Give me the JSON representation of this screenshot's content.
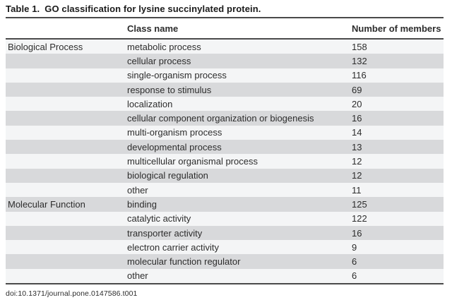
{
  "title": {
    "label": "Table 1.",
    "text": "GO classification for lysine succinylated protein."
  },
  "table": {
    "columns": {
      "category": "",
      "class_name": "Class name",
      "members": "Number of members"
    },
    "sections": [
      {
        "category": "Biological Process",
        "rows": [
          {
            "class_name": "metabolic process",
            "members": "158"
          },
          {
            "class_name": "cellular process",
            "members": "132"
          },
          {
            "class_name": "single-organism process",
            "members": "116"
          },
          {
            "class_name": "response to stimulus",
            "members": "69"
          },
          {
            "class_name": "localization",
            "members": "20"
          },
          {
            "class_name": "cellular component organization or biogenesis",
            "members": "16"
          },
          {
            "class_name": "multi-organism process",
            "members": "14"
          },
          {
            "class_name": "developmental process",
            "members": "13"
          },
          {
            "class_name": "multicellular organismal process",
            "members": "12"
          },
          {
            "class_name": "biological regulation",
            "members": "12"
          },
          {
            "class_name": "other",
            "members": "11"
          }
        ]
      },
      {
        "category": "Molecular Function",
        "rows": [
          {
            "class_name": "binding",
            "members": "125"
          },
          {
            "class_name": "catalytic activity",
            "members": "122"
          },
          {
            "class_name": "transporter activity",
            "members": "16"
          },
          {
            "class_name": "electron carrier activity",
            "members": "9"
          },
          {
            "class_name": "molecular function regulator",
            "members": "6"
          },
          {
            "class_name": "other",
            "members": "6"
          }
        ]
      }
    ]
  },
  "footer": {
    "doi": "doi:10.1371/journal.pone.0147586.t001"
  },
  "colors": {
    "row_shade": "#d8d9db",
    "row_light": "#f4f5f6",
    "rule": "#4a4a4a",
    "text": "#2d2d2d",
    "title": "#1a1a1a"
  }
}
